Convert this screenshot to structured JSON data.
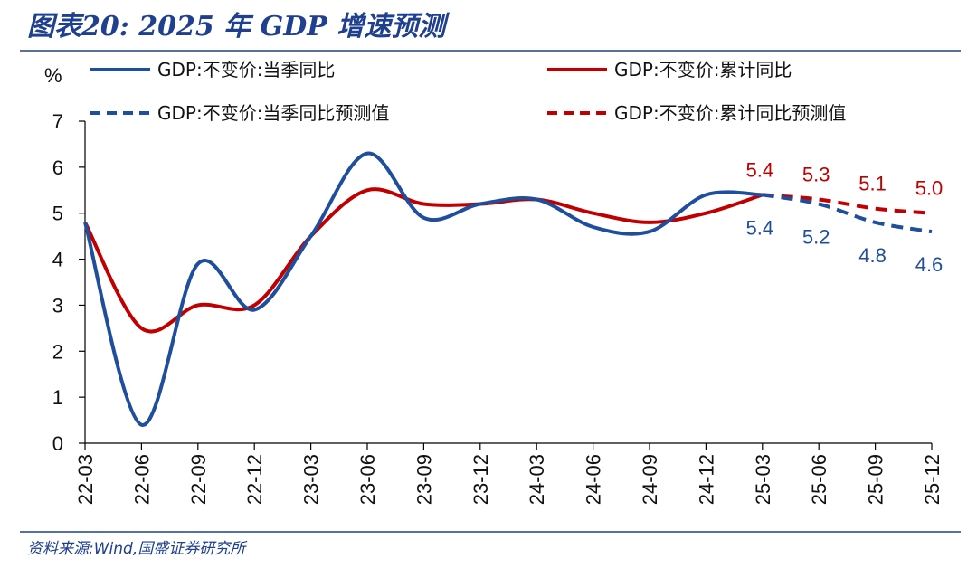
{
  "header": {
    "title": "图表20:  2025 年 GDP 增速预测"
  },
  "footer": {
    "source": "资料来源:Wind,国盛证券研究所"
  },
  "colors": {
    "blue": "#1f4e9c",
    "red": "#c00000",
    "title": "#1f3f8f"
  },
  "chart_data": {
    "type": "line",
    "ylabel": "%",
    "ylim": [
      0,
      7
    ],
    "yticks": [
      0,
      1,
      2,
      3,
      4,
      5,
      6,
      7
    ],
    "categories": [
      "22-03",
      "22-06",
      "22-09",
      "22-12",
      "23-03",
      "23-06",
      "23-09",
      "23-12",
      "24-03",
      "24-06",
      "24-09",
      "24-12",
      "25-03",
      "25-06",
      "25-09",
      "25-12"
    ],
    "legend_position": "top",
    "series": [
      {
        "name": "GDP:不变价:当季同比",
        "color": "#1f4e9c",
        "style": "solid",
        "values": [
          4.8,
          0.4,
          3.9,
          2.9,
          4.5,
          6.3,
          4.9,
          5.2,
          5.3,
          4.7,
          4.6,
          5.4,
          5.4,
          null,
          null,
          null
        ]
      },
      {
        "name": "GDP:不变价:累计同比",
        "color": "#c00000",
        "style": "solid",
        "values": [
          4.8,
          2.5,
          3.0,
          3.0,
          4.5,
          5.5,
          5.2,
          5.2,
          5.3,
          5.0,
          4.8,
          5.0,
          5.4,
          null,
          null,
          null
        ]
      },
      {
        "name": "GDP:不变价:当季同比预测值",
        "color": "#1f4e9c",
        "style": "dashed",
        "values": [
          null,
          null,
          null,
          null,
          null,
          null,
          null,
          null,
          null,
          null,
          null,
          null,
          5.4,
          5.2,
          4.8,
          4.6
        ]
      },
      {
        "name": "GDP:不变价:累计同比预测值",
        "color": "#c00000",
        "style": "dashed",
        "values": [
          null,
          null,
          null,
          null,
          null,
          null,
          null,
          null,
          null,
          null,
          null,
          null,
          5.4,
          5.3,
          5.1,
          5.0
        ]
      }
    ],
    "annotations": {
      "red": [
        {
          "category": "25-03",
          "text": "5.4"
        },
        {
          "category": "25-06",
          "text": "5.3"
        },
        {
          "category": "25-09",
          "text": "5.1"
        },
        {
          "category": "25-12",
          "text": "5.0"
        }
      ],
      "blue": [
        {
          "category": "25-03",
          "text": "5.4"
        },
        {
          "category": "25-06",
          "text": "5.2"
        },
        {
          "category": "25-09",
          "text": "4.8"
        },
        {
          "category": "25-12",
          "text": "4.6"
        }
      ]
    }
  }
}
